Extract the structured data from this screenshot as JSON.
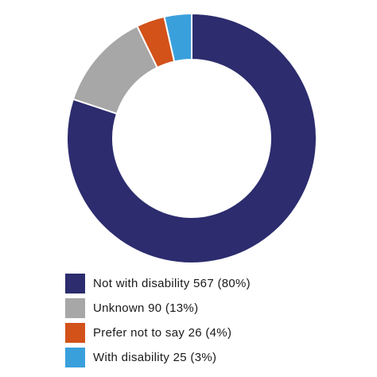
{
  "chart_data": {
    "type": "pie",
    "variant": "donut",
    "start_angle_deg": 0,
    "direction": "clockwise",
    "slices": [
      {
        "label": "Not with disability 567 (80%)",
        "value": 567,
        "percent": 80,
        "color": "#2c2c6e"
      },
      {
        "label": "Unknown 90 (13%)",
        "value": 90,
        "percent": 13,
        "color": "#a7a7a7"
      },
      {
        "label": "Prefer not to say 26 (4%)",
        "value": 26,
        "percent": 4,
        "color": "#d2521a"
      },
      {
        "label": "With disability 25 (3%)",
        "value": 25,
        "percent": 3,
        "color": "#3aa0dc"
      }
    ],
    "legend_position": "bottom-left"
  }
}
